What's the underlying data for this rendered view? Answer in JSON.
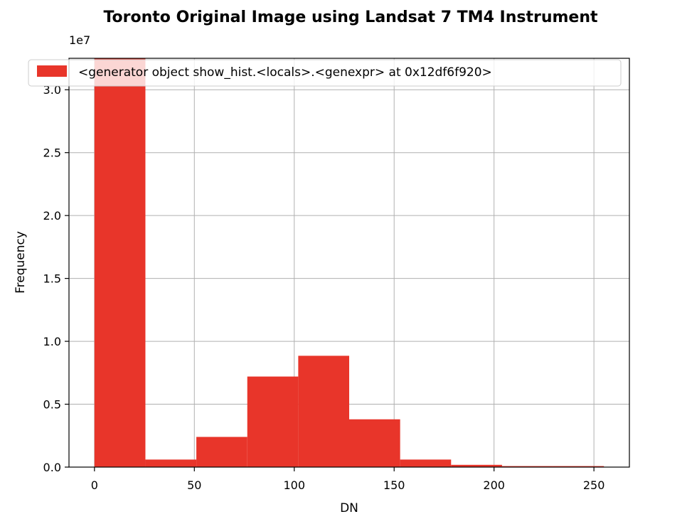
{
  "chart_data": {
    "type": "bar",
    "title": "Toronto Original Image using Landsat 7 TM4 Instrument",
    "xlabel": "DN",
    "ylabel": "Frequency",
    "y_offset_label": "1e7",
    "y_scale_factor": 10000000,
    "xlim": [
      -12.75,
      267.75
    ],
    "ylim": [
      0,
      32500000
    ],
    "grid": true,
    "legend_position": "top",
    "color": "#e8352a",
    "legend": [
      "<generator object show_hist.<locals>.<genexpr> at 0x12df6f920>"
    ],
    "xticks": [
      0,
      50,
      100,
      150,
      200,
      250
    ],
    "yticks": [
      0,
      5000000,
      10000000,
      15000000,
      20000000,
      25000000,
      30000000
    ],
    "ytick_labels": [
      "0.0",
      "0.5",
      "1.0",
      "1.5",
      "2.0",
      "2.5",
      "3.0"
    ],
    "bins": [
      {
        "x0": 0,
        "x1": 25.5,
        "value": 32800000
      },
      {
        "x0": 25.5,
        "x1": 51,
        "value": 600000
      },
      {
        "x0": 51,
        "x1": 76.5,
        "value": 2400000
      },
      {
        "x0": 76.5,
        "x1": 102,
        "value": 7200000
      },
      {
        "x0": 102,
        "x1": 127.5,
        "value": 8850000
      },
      {
        "x0": 127.5,
        "x1": 153,
        "value": 3800000
      },
      {
        "x0": 153,
        "x1": 178.5,
        "value": 600000
      },
      {
        "x0": 178.5,
        "x1": 204,
        "value": 180000
      },
      {
        "x0": 204,
        "x1": 229.5,
        "value": 80000
      },
      {
        "x0": 229.5,
        "x1": 255,
        "value": 80000
      }
    ]
  }
}
